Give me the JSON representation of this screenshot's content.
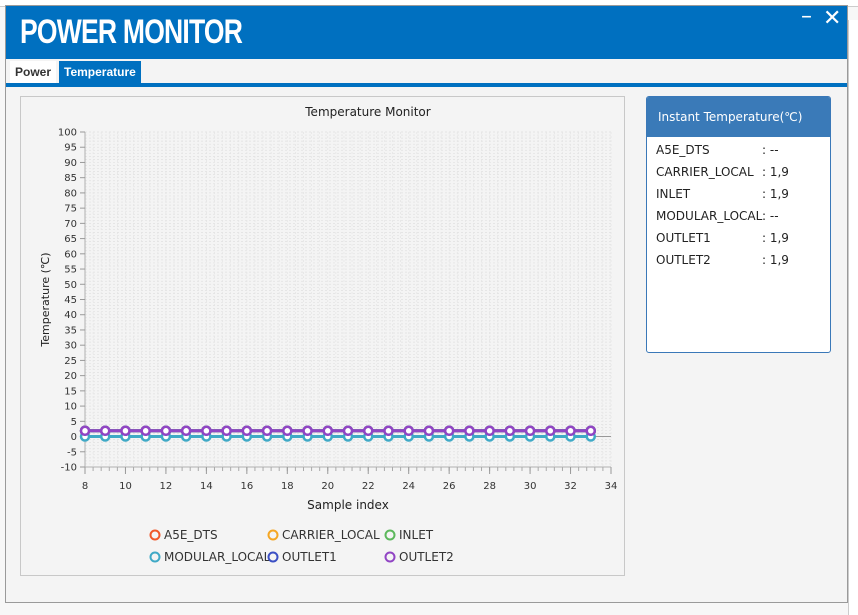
{
  "window": {
    "title": "POWER MONITOR",
    "minimize_label": "–",
    "close_label": "✕"
  },
  "tabs": [
    {
      "label": "Power",
      "active": false
    },
    {
      "label": "Temperature",
      "active": true
    }
  ],
  "instant_panel": {
    "title": "Instant Temperature(℃)",
    "rows": [
      {
        "name": "A5E_DTS",
        "value": ": --"
      },
      {
        "name": "CARRIER_LOCAL",
        "value": ": 1,9"
      },
      {
        "name": "INLET",
        "value": ": 1,9"
      },
      {
        "name": "MODULAR_LOCAL",
        "value": ": --"
      },
      {
        "name": "OUTLET1",
        "value": ": 1,9"
      },
      {
        "name": "OUTLET2",
        "value": ": 1,9"
      }
    ]
  },
  "chart_data": {
    "type": "line",
    "title": "Temperature Monitor",
    "xlabel": "Sample index",
    "ylabel": "Temperature (℃)",
    "xlim": [
      8,
      34
    ],
    "ylim": [
      -10,
      100
    ],
    "xticks": [
      8,
      10,
      12,
      14,
      16,
      18,
      20,
      22,
      24,
      26,
      28,
      30,
      32,
      34
    ],
    "yticks": [
      -10,
      -5,
      0,
      5,
      10,
      15,
      20,
      25,
      30,
      35,
      40,
      45,
      50,
      55,
      60,
      65,
      70,
      75,
      80,
      85,
      90,
      95,
      100
    ],
    "grid": true,
    "legend_placement": "bottom",
    "x": [
      8,
      9,
      10,
      11,
      12,
      13,
      14,
      15,
      16,
      17,
      18,
      19,
      20,
      21,
      22,
      23,
      24,
      25,
      26,
      27,
      28,
      29,
      30,
      31,
      32,
      33
    ],
    "series": [
      {
        "name": "A5E_DTS",
        "color": "#f0582a",
        "value": null
      },
      {
        "name": "CARRIER_LOCAL",
        "color": "#f5a623",
        "value": 1.9
      },
      {
        "name": "INLET",
        "color": "#5cb85c",
        "value": 1.9
      },
      {
        "name": "MODULAR_LOCAL",
        "color": "#3fa9c6",
        "value": 0
      },
      {
        "name": "OUTLET1",
        "color": "#3b4fc4",
        "value": 1.9
      },
      {
        "name": "OUTLET2",
        "color": "#9145c4",
        "value": 1.9
      }
    ]
  }
}
